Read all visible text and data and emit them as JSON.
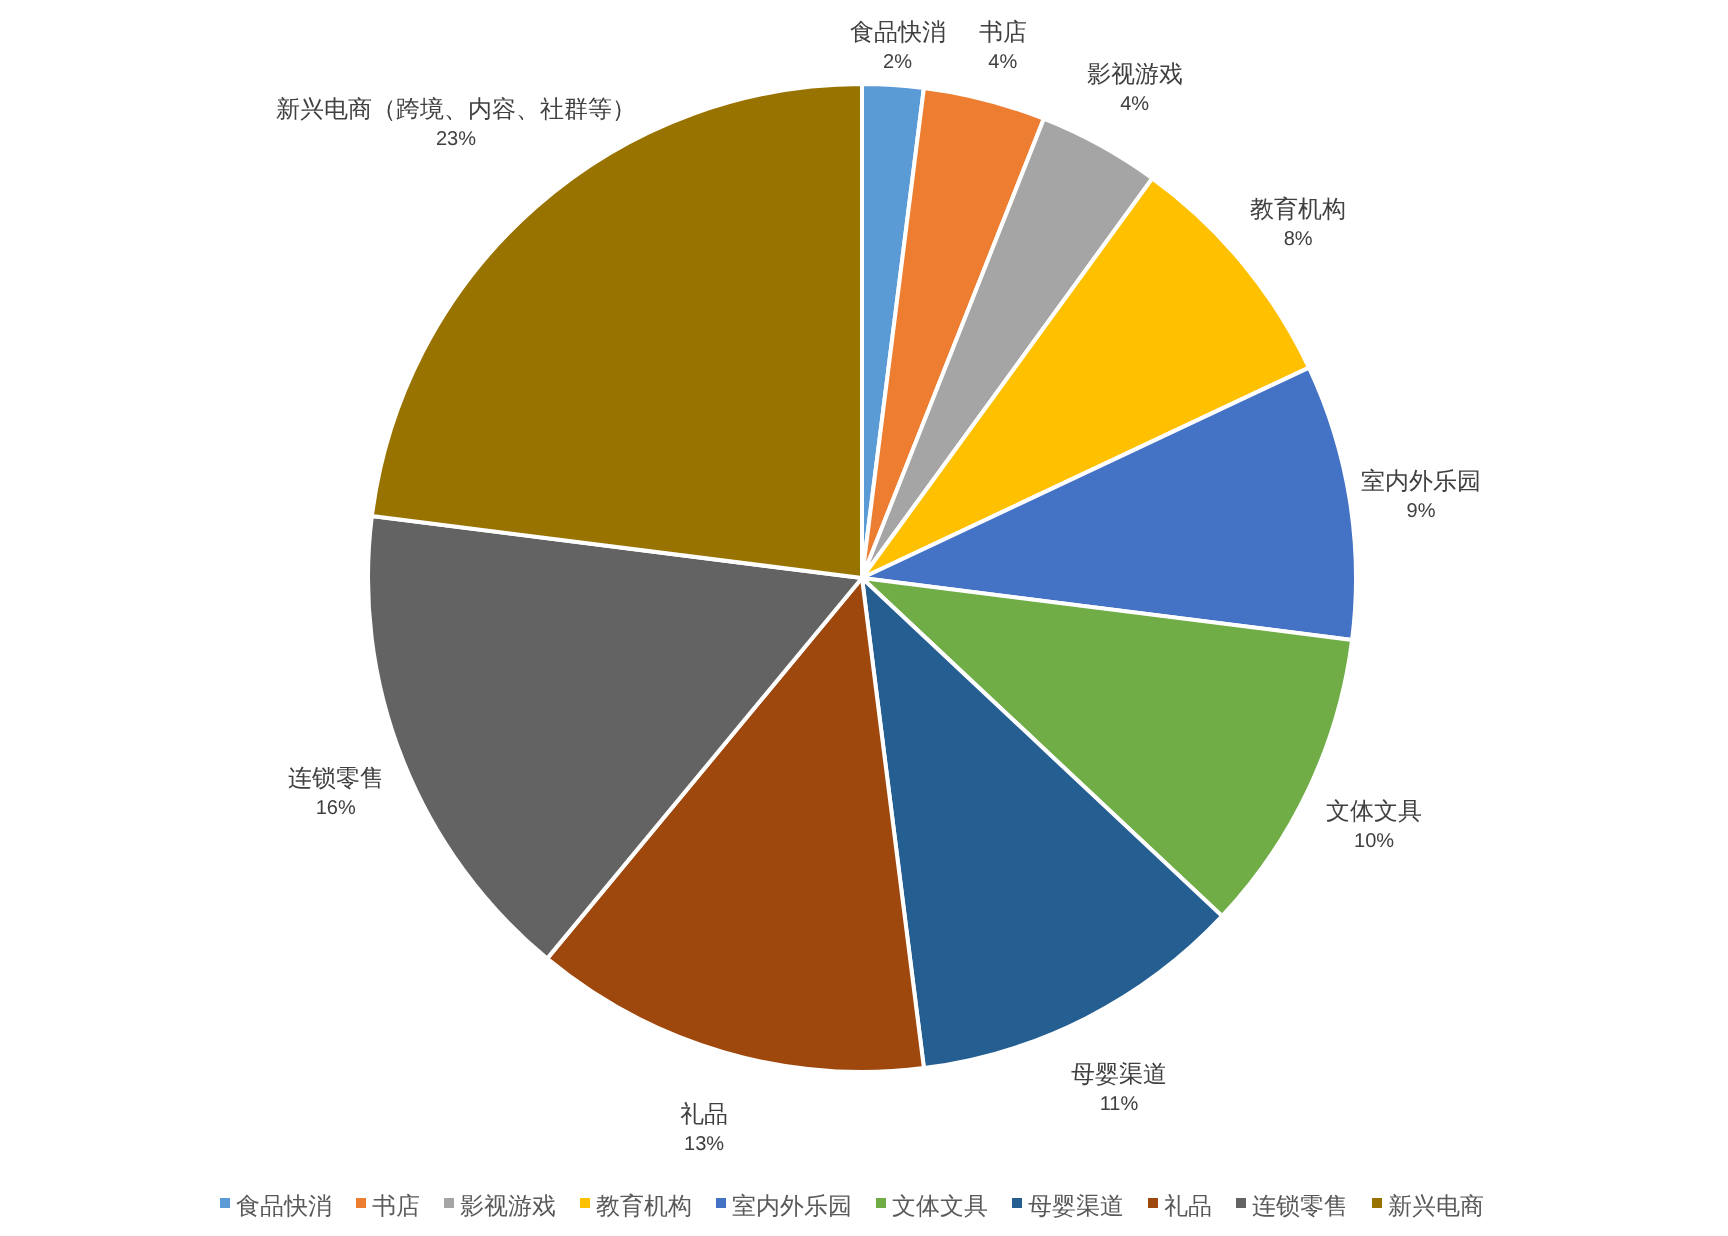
{
  "chart_data": {
    "type": "pie",
    "categories": [
      "食品快消",
      "书店",
      "影视游戏",
      "教育机构",
      "室内外乐园",
      "文体文具",
      "母婴渠道",
      "礼品",
      "连锁零售",
      "新兴电商"
    ],
    "values": [
      2,
      4,
      4,
      8,
      9,
      10,
      11,
      13,
      16,
      23
    ],
    "colors": [
      "#5b9bd5",
      "#ed7d31",
      "#a5a5a5",
      "#ffc000",
      "#4472c4",
      "#70ad47",
      "#255e91",
      "#9e480e",
      "#636363",
      "#997300"
    ],
    "value_labels": [
      "2%",
      "4%",
      "4%",
      "8%",
      "9%",
      "10%",
      "11%",
      "13%",
      "16%",
      "23%"
    ],
    "legend": "bottom",
    "annotations": [
      {
        "text": "新兴电商（跨境、内容、社群等）",
        "x": "新兴电商"
      }
    ]
  }
}
